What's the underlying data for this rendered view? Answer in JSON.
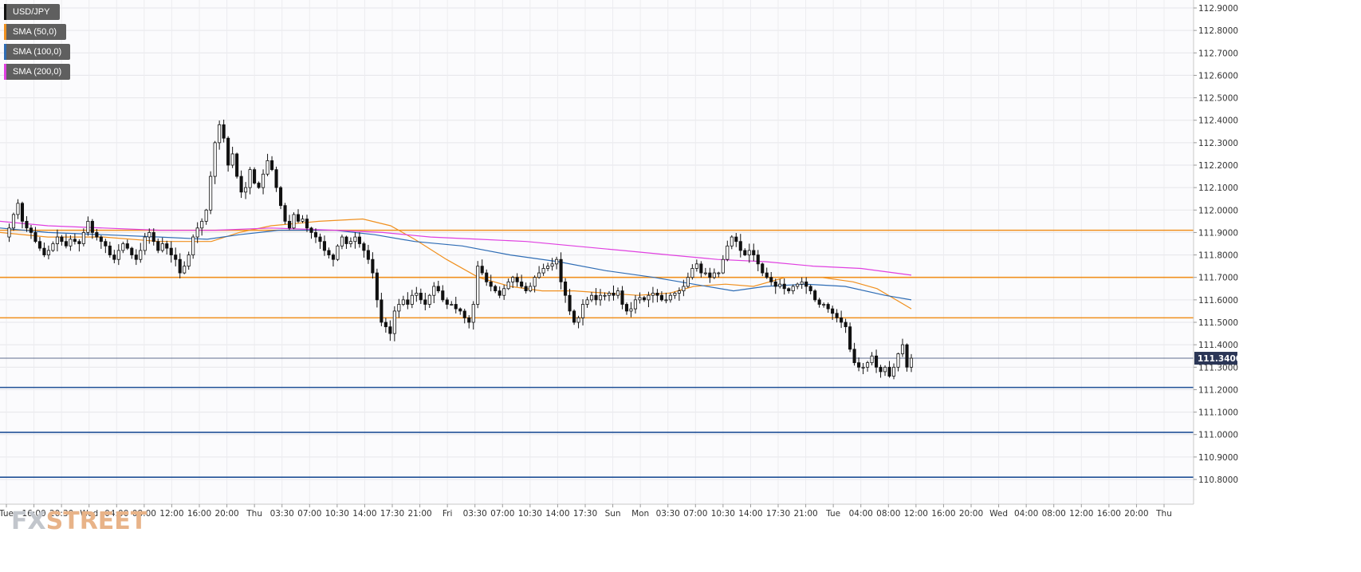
{
  "legend": [
    {
      "label": "USD/JPY",
      "color": "#111111"
    },
    {
      "label": "SMA (50,0)",
      "color": "#f0901f"
    },
    {
      "label": "SMA (100,0)",
      "color": "#2f6db5"
    },
    {
      "label": "SMA (200,0)",
      "color": "#e040e0"
    }
  ],
  "logo": {
    "part1": "FX",
    "part2": "STREET"
  },
  "chart_data": {
    "type": "candlestick",
    "symbol": "USD/JPY",
    "ylim": [
      110.7,
      112.95
    ],
    "y_ticks": [
      "112.9000",
      "112.8000",
      "112.7000",
      "112.6000",
      "112.5000",
      "112.4000",
      "112.3000",
      "112.2000",
      "112.1000",
      "112.0000",
      "111.9000",
      "111.8000",
      "111.7000",
      "111.6000",
      "111.5000",
      "111.4000",
      "111.3000",
      "111.2000",
      "111.1000",
      "111.0000",
      "110.9000",
      "110.8000"
    ],
    "x_ticks": [
      "Tue",
      "16:00",
      "20:30",
      "Wed",
      "04:00",
      "08:00",
      "12:00",
      "16:00",
      "20:00",
      "Thu",
      "03:30",
      "07:00",
      "10:30",
      "14:00",
      "17:30",
      "21:00",
      "Fri",
      "03:30",
      "07:00",
      "10:30",
      "14:00",
      "17:30",
      "Sun",
      "Mon",
      "03:30",
      "07:00",
      "10:30",
      "14:00",
      "17:30",
      "21:00",
      "Tue",
      "04:00",
      "08:00",
      "12:00",
      "16:00",
      "20:00",
      "Wed",
      "04:00",
      "08:00",
      "12:00",
      "16:00",
      "20:00",
      "Thu"
    ],
    "last_price": "111.3400",
    "horizontal_levels": [
      {
        "value": 111.91,
        "color": "#f0901f"
      },
      {
        "value": 111.7,
        "color": "#f0901f"
      },
      {
        "value": 111.52,
        "color": "#f0901f"
      },
      {
        "value": 111.21,
        "color": "#1f4f96"
      },
      {
        "value": 111.01,
        "color": "#1f4f96"
      },
      {
        "value": 110.81,
        "color": "#1f4f96"
      }
    ],
    "price_path": [
      111.88,
      111.92,
      111.98,
      112.03,
      111.95,
      111.92,
      111.9,
      111.86,
      111.83,
      111.8,
      111.82,
      111.85,
      111.88,
      111.86,
      111.84,
      111.87,
      111.86,
      111.85,
      111.9,
      111.95,
      111.9,
      111.88,
      111.86,
      111.84,
      111.8,
      111.78,
      111.82,
      111.85,
      111.83,
      111.8,
      111.78,
      111.82,
      111.88,
      111.9,
      111.86,
      111.82,
      111.85,
      111.83,
      111.8,
      111.78,
      111.72,
      111.75,
      111.8,
      111.88,
      111.92,
      111.95,
      112.0,
      112.15,
      112.3,
      112.38,
      112.32,
      112.2,
      112.25,
      112.15,
      112.08,
      112.1,
      112.18,
      112.12,
      112.1,
      112.16,
      112.22,
      112.18,
      112.1,
      112.02,
      111.95,
      111.92,
      111.98,
      111.95,
      111.96,
      111.92,
      111.9,
      111.88,
      111.86,
      111.82,
      111.8,
      111.78,
      111.84,
      111.88,
      111.85,
      111.86,
      111.88,
      111.85,
      111.82,
      111.78,
      111.72,
      111.6,
      111.5,
      111.48,
      111.45,
      111.55,
      111.58,
      111.6,
      111.58,
      111.62,
      111.63,
      111.6,
      111.58,
      111.62,
      111.66,
      111.64,
      111.6,
      111.58,
      111.58,
      111.56,
      111.55,
      111.52,
      111.5,
      111.58,
      111.75,
      111.72,
      111.68,
      111.66,
      111.64,
      111.62,
      111.65,
      111.68,
      111.7,
      111.68,
      111.66,
      111.64,
      111.66,
      111.7,
      111.72,
      111.74,
      111.75,
      111.76,
      111.78,
      111.68,
      111.62,
      111.55,
      111.5,
      111.52,
      111.58,
      111.6,
      111.62,
      111.6,
      111.62,
      111.62,
      111.63,
      111.62,
      111.64,
      111.58,
      111.55,
      111.56,
      111.6,
      111.61,
      111.6,
      111.62,
      111.63,
      111.62,
      111.6,
      111.6,
      111.62,
      111.63,
      111.64,
      111.66,
      111.7,
      111.74,
      111.76,
      111.72,
      111.72,
      111.7,
      111.72,
      111.72,
      111.78,
      111.84,
      111.88,
      111.86,
      111.82,
      111.8,
      111.82,
      111.8,
      111.76,
      111.72,
      111.7,
      111.68,
      111.66,
      111.67,
      111.65,
      111.64,
      111.66,
      111.67,
      111.68,
      111.66,
      111.64,
      111.6,
      111.58,
      111.58,
      111.56,
      111.54,
      111.52,
      111.5,
      111.48,
      111.38,
      111.32,
      111.3,
      111.3,
      111.32,
      111.35,
      111.3,
      111.28,
      111.3,
      111.26,
      111.3,
      111.36,
      111.4,
      111.3,
      111.34
    ],
    "sma50": [
      [
        0,
        111.9
      ],
      [
        60,
        111.88
      ],
      [
        130,
        111.88
      ],
      [
        200,
        111.86
      ],
      [
        265,
        111.86
      ],
      [
        300,
        111.9
      ],
      [
        340,
        111.93
      ],
      [
        400,
        111.95
      ],
      [
        455,
        111.96
      ],
      [
        490,
        111.93
      ],
      [
        520,
        111.87
      ],
      [
        560,
        111.78
      ],
      [
        600,
        111.7
      ],
      [
        640,
        111.66
      ],
      [
        680,
        111.64
      ],
      [
        720,
        111.64
      ],
      [
        760,
        111.63
      ],
      [
        800,
        111.62
      ],
      [
        840,
        111.63
      ],
      [
        870,
        111.66
      ],
      [
        910,
        111.67
      ],
      [
        945,
        111.66
      ],
      [
        985,
        111.7
      ],
      [
        1030,
        111.7
      ],
      [
        1070,
        111.68
      ],
      [
        1100,
        111.65
      ],
      [
        1143,
        111.56
      ]
    ],
    "sma100": [
      [
        0,
        111.92
      ],
      [
        60,
        111.9
      ],
      [
        130,
        111.89
      ],
      [
        200,
        111.88
      ],
      [
        260,
        111.87
      ],
      [
        300,
        111.89
      ],
      [
        350,
        111.91
      ],
      [
        420,
        111.91
      ],
      [
        470,
        111.89
      ],
      [
        520,
        111.86
      ],
      [
        580,
        111.84
      ],
      [
        640,
        111.8
      ],
      [
        700,
        111.77
      ],
      [
        760,
        111.73
      ],
      [
        820,
        111.7
      ],
      [
        870,
        111.67
      ],
      [
        920,
        111.64
      ],
      [
        960,
        111.66
      ],
      [
        1010,
        111.67
      ],
      [
        1060,
        111.66
      ],
      [
        1110,
        111.62
      ],
      [
        1143,
        111.6
      ]
    ],
    "sma200": [
      [
        0,
        111.95
      ],
      [
        60,
        111.93
      ],
      [
        130,
        111.92
      ],
      [
        200,
        111.91
      ],
      [
        270,
        111.91
      ],
      [
        340,
        111.92
      ],
      [
        420,
        111.91
      ],
      [
        480,
        111.9
      ],
      [
        540,
        111.88
      ],
      [
        600,
        111.87
      ],
      [
        660,
        111.86
      ],
      [
        720,
        111.84
      ],
      [
        780,
        111.82
      ],
      [
        840,
        111.8
      ],
      [
        900,
        111.78
      ],
      [
        960,
        111.77
      ],
      [
        1020,
        111.75
      ],
      [
        1080,
        111.74
      ],
      [
        1143,
        111.71
      ]
    ]
  }
}
